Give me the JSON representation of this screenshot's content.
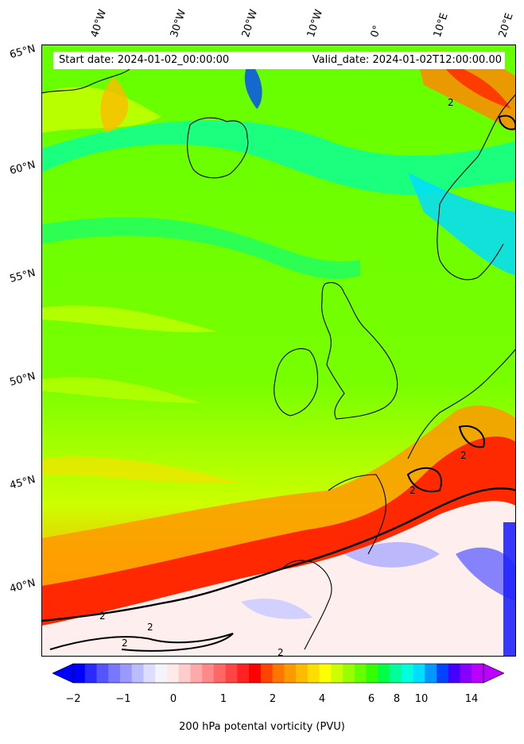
{
  "header": {
    "start_date": "Start date: 2024-01-02_00:00:00",
    "valid_date": "Valid_date: 2024-01-02T12:00:00.00"
  },
  "axes": {
    "longitudes": [
      "40°W",
      "30°W",
      "20°W",
      "10°W",
      "0°",
      "10°E",
      "20°E"
    ],
    "latitudes": [
      "65°N",
      "60°N",
      "55°N",
      "50°N",
      "45°N",
      "40°N"
    ]
  },
  "colorbar": {
    "title": "200 hPa potental vorticity (PVU)",
    "ticks": [
      "−2",
      "−1",
      "0",
      "1",
      "2",
      "4",
      "6",
      "8",
      "10",
      "14"
    ],
    "colors": [
      "#0000ff",
      "#2a2aff",
      "#5555ff",
      "#7777ff",
      "#9999ff",
      "#bbbbff",
      "#ddddff",
      "#f4f4ff",
      "#ffeaea",
      "#ffcccc",
      "#ffaaaa",
      "#ff8888",
      "#ff6666",
      "#ff4444",
      "#ff2222",
      "#ff0000",
      "#ff4400",
      "#ff7700",
      "#ff9900",
      "#ffbb00",
      "#ffdd00",
      "#ffff00",
      "#ccff00",
      "#99ff00",
      "#66ff00",
      "#33ff00",
      "#00ff44",
      "#00ff99",
      "#00ffdd",
      "#00ddff",
      "#0099ff",
      "#0044ff",
      "#4400ff",
      "#8800ff",
      "#bb00ff"
    ],
    "extend_low": "#0000ff",
    "extend_high": "#bb00ff"
  },
  "contour_label": "2"
}
